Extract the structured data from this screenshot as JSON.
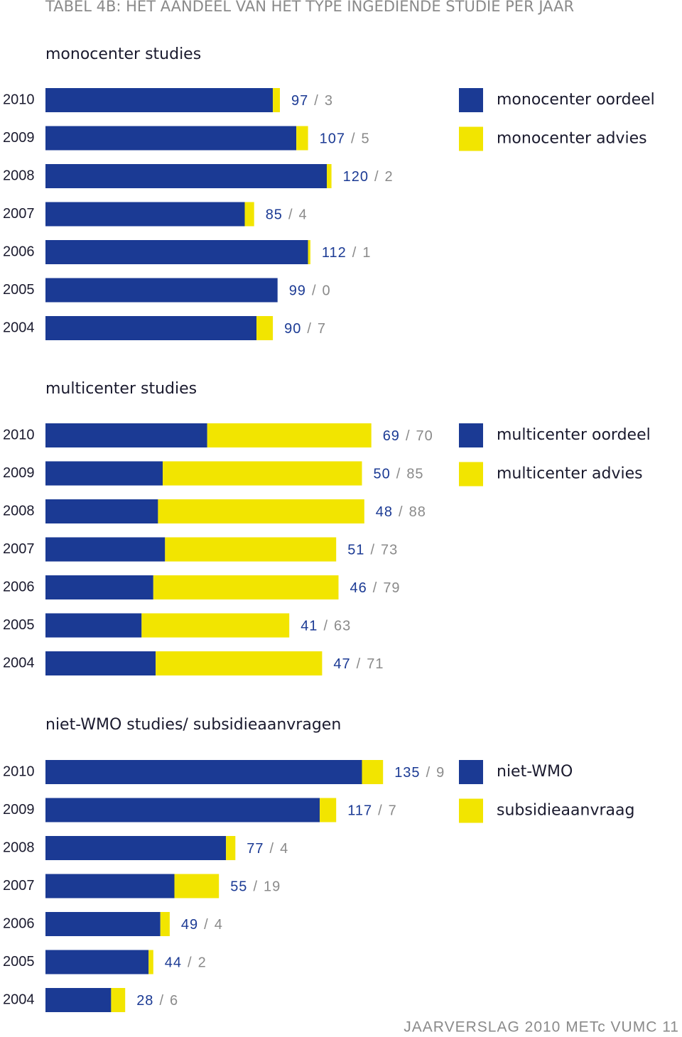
{
  "title": "TABEL 4B: HET AANDEEL VAN HET TYPE INGEDIENDE STUDIE PER JAAR",
  "footer": "JAARVERSLAG 2010 METc VUMC  11",
  "value_separator": "/",
  "chart_data": [
    {
      "type": "stacked-bar",
      "title": "monocenter studies",
      "categories": [
        "2010",
        "2009",
        "2008",
        "2007",
        "2006",
        "2005",
        "2004"
      ],
      "series": [
        {
          "name": "monocenter oordeel",
          "color": "#1b3a94",
          "values": [
            97,
            107,
            120,
            85,
            112,
            99,
            90
          ]
        },
        {
          "name": "monocenter advies",
          "color": "#f2e500",
          "values": [
            3,
            5,
            2,
            4,
            1,
            0,
            7
          ]
        }
      ],
      "xlim": [
        0,
        270
      ],
      "legend": "top-right"
    },
    {
      "type": "stacked-bar",
      "title": "multicenter studies",
      "categories": [
        "2010",
        "2009",
        "2008",
        "2007",
        "2006",
        "2005",
        "2004"
      ],
      "series": [
        {
          "name": "multicenter oordeel",
          "color": "#1b3a94",
          "values": [
            69,
            50,
            48,
            51,
            46,
            41,
            47
          ]
        },
        {
          "name": "multicenter advies",
          "color": "#f2e500",
          "values": [
            70,
            85,
            88,
            73,
            79,
            63,
            71
          ]
        }
      ],
      "xlim": [
        0,
        270
      ],
      "legend": "top-right"
    },
    {
      "type": "stacked-bar",
      "title": "niet-WMO studies/ subsidieaanvragen",
      "categories": [
        "2010",
        "2009",
        "2008",
        "2007",
        "2006",
        "2005",
        "2004"
      ],
      "series": [
        {
          "name": "niet-WMO",
          "color": "#1b3a94",
          "values": [
            135,
            117,
            77,
            55,
            49,
            44,
            28
          ]
        },
        {
          "name": "subsidieaanvraag",
          "color": "#f2e500",
          "values": [
            9,
            7,
            4,
            19,
            4,
            2,
            6
          ]
        }
      ],
      "xlim": [
        0,
        270
      ],
      "legend": "top-right"
    }
  ]
}
